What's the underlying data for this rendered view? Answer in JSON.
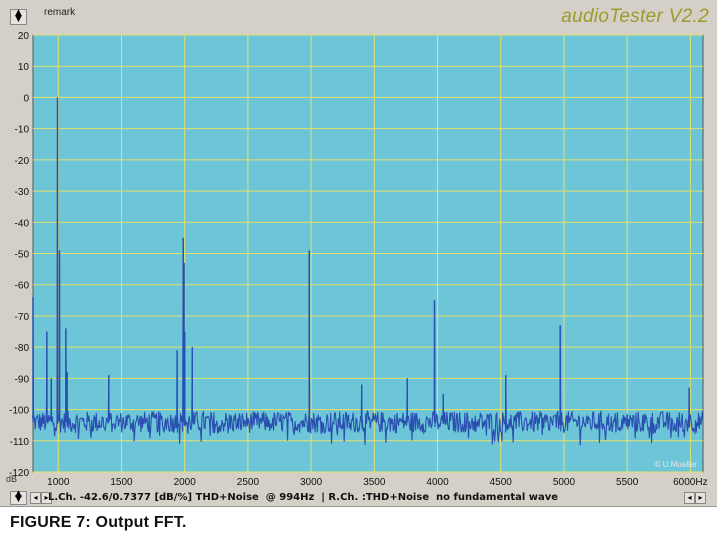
{
  "app": {
    "remark_label": "remark",
    "title": "audioTester V2.2"
  },
  "status": {
    "text": "L.Ch. -42.6/0.7377 [dB/%] THD+Noise  @ 994Hz  | R.Ch. :THD+Noise  no fundamental wave"
  },
  "caption": "FIGURE 7: Output FFT.",
  "colors": {
    "plot_bg": "#6cc6d8",
    "grid": "#e6e06a",
    "trace": "#2a4fb0",
    "frame": "#d4d0c8",
    "title": "#9b9a2a"
  },
  "chart_data": {
    "type": "line",
    "xlabel": "",
    "ylabel": "",
    "y_unit": "dB",
    "x_unit": "Hz",
    "xlim": [
      800,
      6100
    ],
    "ylim": [
      -120,
      20
    ],
    "grid": true,
    "x_ticks": [
      "1000",
      "1500",
      "2000",
      "2500",
      "3000",
      "3500",
      "4000",
      "4500",
      "5000",
      "5500",
      "6000Hz"
    ],
    "x_tick_values": [
      1000,
      1500,
      2000,
      2500,
      3000,
      3500,
      4000,
      4500,
      5000,
      5500,
      6000
    ],
    "y_ticks": [
      "20",
      "10",
      "0",
      "-10",
      "-20",
      "-30",
      "-40",
      "-50",
      "-60",
      "-70",
      "-80",
      "-90",
      "-100",
      "-110",
      "-120"
    ],
    "y_tick_values": [
      20,
      10,
      0,
      -10,
      -20,
      -30,
      -40,
      -50,
      -60,
      -70,
      -80,
      -90,
      -100,
      -110,
      -120
    ],
    "noise_floor_db": -104,
    "peaks": [
      {
        "x": 800,
        "y": -64
      },
      {
        "x": 910,
        "y": -75
      },
      {
        "x": 945,
        "y": -90
      },
      {
        "x": 994,
        "y": 0
      },
      {
        "x": 1010,
        "y": -49
      },
      {
        "x": 1060,
        "y": -74
      },
      {
        "x": 1070,
        "y": -88
      },
      {
        "x": 1400,
        "y": -89
      },
      {
        "x": 1940,
        "y": -81
      },
      {
        "x": 1988,
        "y": -45
      },
      {
        "x": 1995,
        "y": -53
      },
      {
        "x": 2000,
        "y": -75
      },
      {
        "x": 2060,
        "y": -80
      },
      {
        "x": 2985,
        "y": -49
      },
      {
        "x": 3400,
        "y": -92
      },
      {
        "x": 3760,
        "y": -90
      },
      {
        "x": 3976,
        "y": -65
      },
      {
        "x": 4045,
        "y": -95
      },
      {
        "x": 4540,
        "y": -89
      },
      {
        "x": 4970,
        "y": -73
      },
      {
        "x": 5990,
        "y": -93
      }
    ],
    "watermark": "© U.Mueller"
  }
}
